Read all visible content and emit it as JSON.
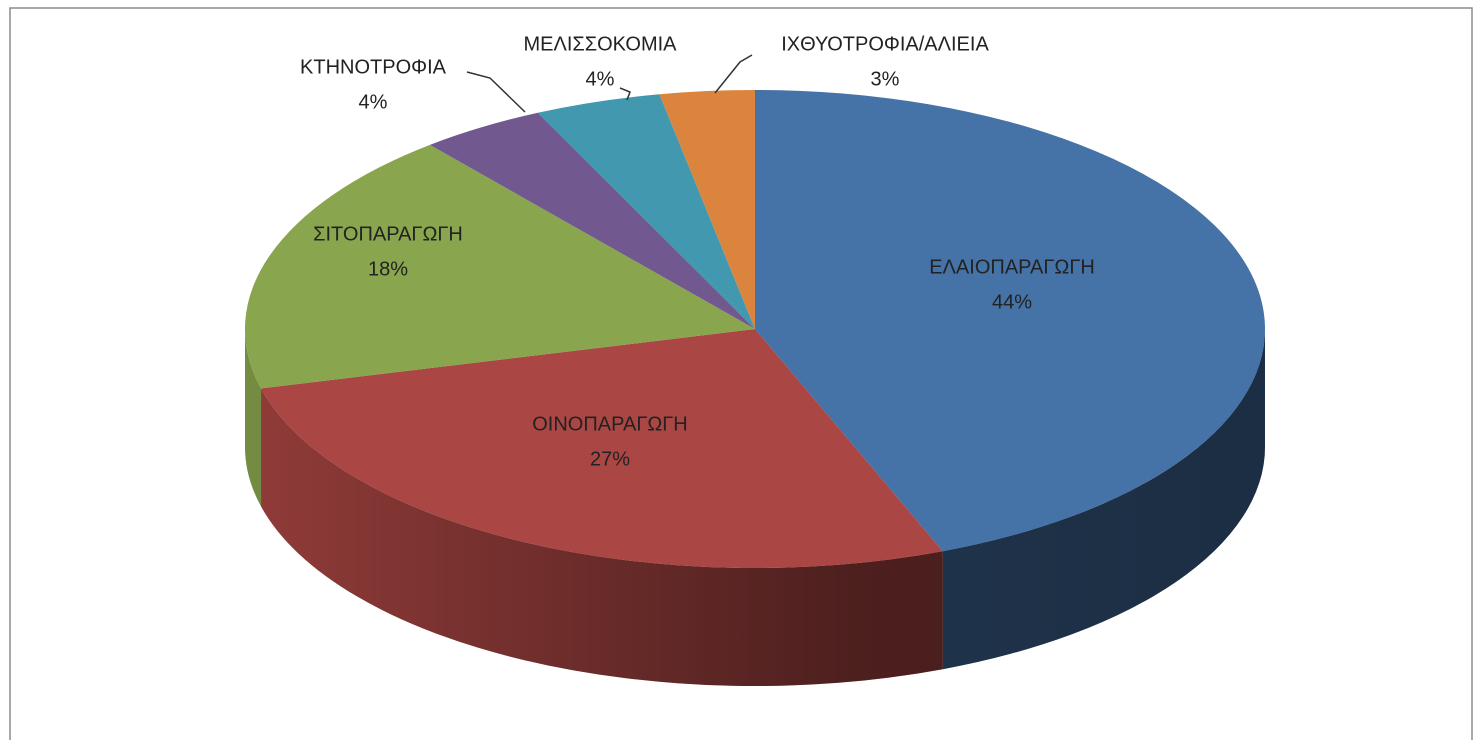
{
  "chart_data": {
    "type": "pie",
    "categories": [
      "ΕΛΑΙΟΠΑΡΑΓΩΓΗ",
      "ΟΙΝΟΠΑΡΑΓΩΓΗ",
      "ΣΙΤΟΠΑΡΑΓΩΓΗ",
      "ΚΤΗΝΟΤΡΟΦΙΑ",
      "ΜΕΛΙΣΣΟΚΟΜΙΑ",
      "ΙΧΘΥΟΤΡΟΦΙΑ/ΑΛΙΕΙΑ"
    ],
    "values": [
      44,
      27,
      18,
      4,
      4,
      3
    ],
    "value_labels": [
      "44%",
      "27%",
      "18%",
      "4%",
      "4%",
      "3%"
    ],
    "colors": [
      "#4572a7",
      "#aa4643",
      "#89a54e",
      "#71588f",
      "#4198af",
      "#db843d"
    ]
  }
}
